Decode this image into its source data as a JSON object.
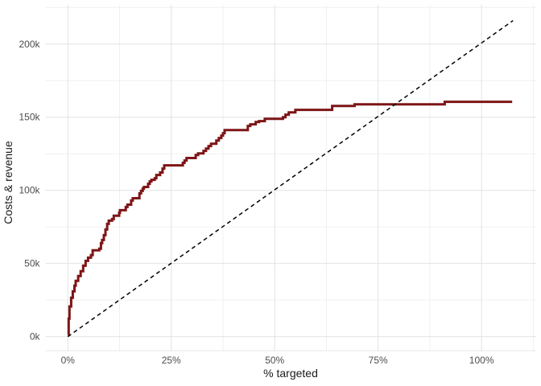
{
  "chart_data": {
    "type": "line",
    "subtype": "step-gains-curve",
    "title": "",
    "xlabel": "% targeted",
    "ylabel": "Costs & revenue",
    "legend": "none",
    "grid": "major+minor",
    "x_ticks": {
      "values": [
        0,
        25,
        50,
        75,
        100
      ],
      "labels": [
        "0%",
        "25%",
        "50%",
        "75%",
        "100%"
      ]
    },
    "y_ticks": {
      "values": [
        0,
        50,
        100,
        150,
        200
      ],
      "labels": [
        "0k",
        "50k",
        "100k",
        "150k",
        "200k"
      ]
    },
    "x_minor": [
      12.5,
      37.5,
      62.5,
      87.5,
      112.5
    ],
    "y_minor": [
      25,
      75,
      125,
      175,
      225
    ],
    "xlim": [
      -5.4,
      113.2
    ],
    "ylim": [
      -10.1,
      226.8
    ],
    "series": [
      {
        "name": "revenues-step-curve",
        "style": "step",
        "color": "#7D1517",
        "width": 3,
        "x": [
          0,
          0.2,
          0.4,
          0.8,
          1.2,
          1.6,
          1.9,
          2.5,
          3.1,
          3.7,
          4.3,
          4.9,
          5.6,
          6.0,
          7.6,
          8.0,
          8.3,
          8.7,
          9.1,
          9.5,
          9.9,
          10.7,
          11.1,
          12.4,
          12.6,
          14.0,
          14.4,
          15.3,
          15.7,
          17.3,
          17.7,
          18.1,
          18.4,
          19.4,
          19.8,
          20.2,
          21.0,
          21.4,
          22.3,
          22.9,
          23.3,
          27.8,
          28.2,
          28.7,
          30.9,
          31.5,
          32.8,
          33.4,
          34.0,
          34.6,
          35.9,
          36.5,
          37.1,
          37.5,
          37.9,
          43.5,
          44.1,
          45.4,
          46.2,
          47.6,
          52.0,
          52.6,
          53.4,
          55.0,
          63.9,
          69.3,
          91.1,
          107.4
        ],
        "y": [
          1.4,
          12.3,
          20.6,
          26.6,
          31.0,
          34.8,
          38.1,
          41.4,
          44.7,
          48.5,
          51.8,
          54.0,
          55.7,
          59.0,
          60.1,
          63.9,
          66.1,
          69.4,
          73.2,
          77.1,
          79.3,
          80.4,
          82.6,
          84.7,
          86.4,
          88.6,
          90.2,
          93.0,
          94.6,
          97.9,
          99.6,
          101.2,
          102.3,
          104.5,
          106.1,
          107.2,
          108.3,
          110.5,
          112.2,
          114.9,
          117.1,
          118.8,
          120.4,
          122.1,
          124.2,
          125.3,
          127.0,
          128.6,
          130.3,
          131.9,
          134.1,
          135.8,
          137.4,
          139.1,
          141.2,
          144.0,
          145.1,
          146.7,
          147.3,
          148.9,
          150.0,
          151.7,
          153.3,
          155.0,
          157.7,
          158.8,
          160.5,
          160.5
        ]
      },
      {
        "name": "costs-dashed-line",
        "style": "dashed",
        "color": "#000000",
        "width": 1.5,
        "dash": [
          5,
          4
        ],
        "x": [
          0,
          107.6
        ],
        "y": [
          0,
          216
        ]
      }
    ],
    "colors": {
      "grid_major": "#E2E2E2",
      "grid_minor": "#F0F0F0",
      "panel_edge": "#E7E7E7",
      "tick_text": "#4D4D4D",
      "title_text": "#1A1A1A",
      "background": "#FFFFFF"
    }
  }
}
